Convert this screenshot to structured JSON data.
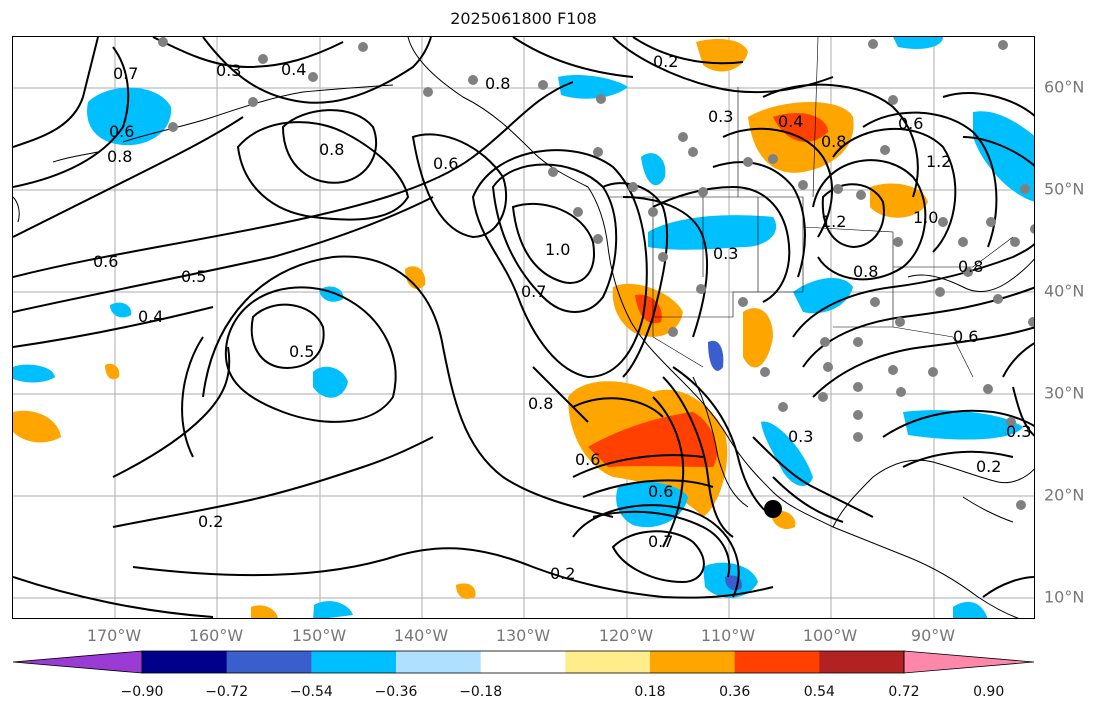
{
  "title": "2025061800 F108",
  "lon_labels": [
    "170°W",
    "160°W",
    "150°W",
    "140°W",
    "130°W",
    "120°W",
    "110°W",
    "100°W",
    "90°W"
  ],
  "lat_labels": [
    "60°N",
    "50°N",
    "40°N",
    "30°N",
    "20°N",
    "10°N"
  ],
  "colorbar": {
    "colors": [
      "#9a3bd6",
      "#00008b",
      "#3a5fcd",
      "#00bfff",
      "#b0e0ff",
      "#ffffff",
      "#ffec8b",
      "#ffa500",
      "#ff4000",
      "#b22222",
      "#ff88aa"
    ],
    "ticks": [
      "−0.90",
      "−0.72",
      "−0.54",
      "−0.36",
      "−0.18",
      "0.18",
      "0.36",
      "0.54",
      "0.72",
      "0.90"
    ]
  },
  "contour_labels": [
    "0.3",
    "0.4",
    "0.7",
    "0.6",
    "0.8",
    "0.8",
    "0.6",
    "0.8",
    "0.6",
    "0.5",
    "0.4",
    "0.5",
    "1.0",
    "0.7",
    "0.8",
    "0.6",
    "0.6",
    "0.7",
    "0.2",
    "0.2",
    "0.3",
    "0.4",
    "0.8",
    "1.2",
    "0.3",
    "0.8",
    "1.2",
    "0.6",
    "1.0",
    "0.2",
    "0.3",
    "0.2",
    "0.6",
    "0.8",
    "0.3"
  ],
  "colors": {
    "contour": "#000000",
    "grid": "#8c8c8c",
    "coast": "#000000",
    "dot": "#808080"
  }
}
